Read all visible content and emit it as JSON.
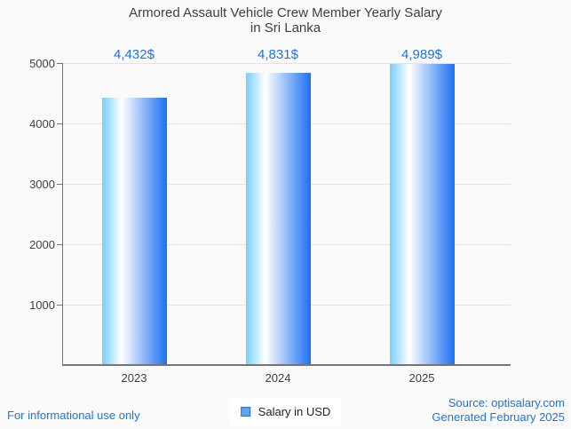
{
  "title": {
    "line1": "Armored Assault Vehicle Crew Member Yearly Salary",
    "line2": "in Sri Lanka"
  },
  "chart_data": {
    "type": "bar",
    "title": "Armored Assault Vehicle Crew Member Yearly Salary in Sri Lanka",
    "categories": [
      "2023",
      "2024",
      "2025"
    ],
    "values": [
      4432,
      4831,
      4989
    ],
    "value_labels": [
      "4,432$",
      "4,831$",
      "4,989$"
    ],
    "xlabel": "",
    "ylabel": "",
    "ylim": [
      0,
      5000
    ],
    "yticks": [
      1000,
      2000,
      3000,
      4000,
      5000
    ],
    "grid": true,
    "legend_position": "bottom",
    "series_name": "Salary in USD",
    "bar_gradient": [
      "#76cffb",
      "#ffffff",
      "#1b70f3"
    ]
  },
  "legend": {
    "label": "Salary in USD"
  },
  "footer": {
    "left": "For informational use only",
    "source": "Source: optisalary.com",
    "generated": "Generated February 2025"
  },
  "colors": {
    "accent_blue": "#1a73e8",
    "title_color": "#3c4043",
    "axis_color": "#757575",
    "grid_color": "#e3e3e3",
    "page_background": "#fafafa",
    "legend_swatch_fill": "#63a1e8",
    "legend_swatch_border": "#2e6fd0"
  }
}
